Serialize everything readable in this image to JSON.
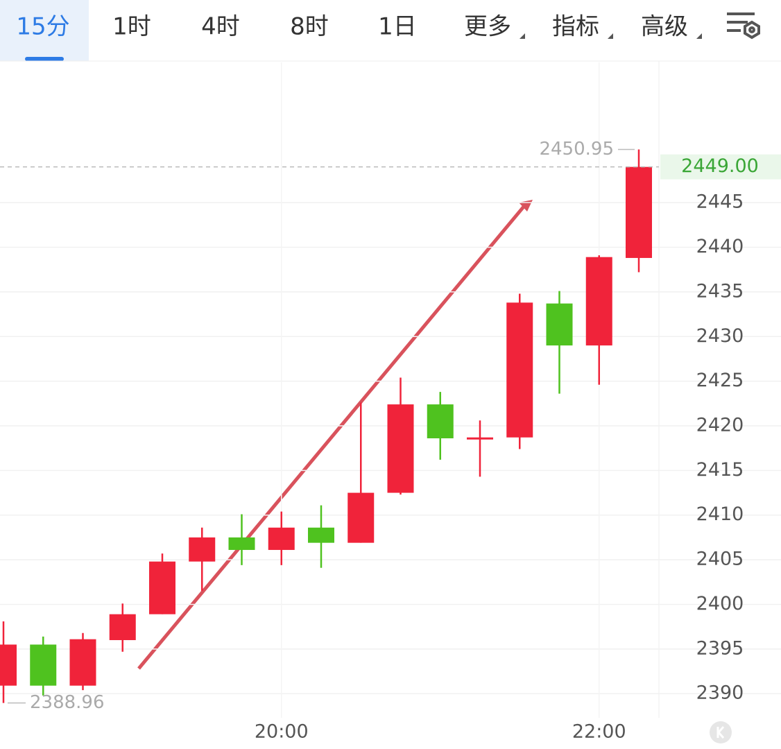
{
  "tabs": [
    "15分",
    "1时",
    "4时",
    "8时",
    "1日",
    "更多",
    "指标",
    "高级"
  ],
  "chart_data": {
    "type": "candlestick",
    "categories": [
      null,
      null,
      null,
      null,
      null,
      null,
      null,
      "20:00",
      null,
      null,
      null,
      null,
      null,
      null,
      null,
      "22:00",
      null
    ],
    "series": [
      {
        "up_color": "#f0233a",
        "down_color": "#4fc21f",
        "open": [
          2390.9,
          2395.5,
          2390.9,
          2396.0,
          2398.9,
          2404.8,
          2407.5,
          2406.1,
          2408.6,
          2406.9,
          2412.5,
          2422.4,
          2418.6,
          2418.7,
          2433.7,
          2429.0,
          2438.8
        ],
        "close": [
          2395.5,
          2390.9,
          2396.1,
          2398.9,
          2404.8,
          2407.5,
          2406.1,
          2408.6,
          2406.9,
          2412.5,
          2422.4,
          2418.6,
          2418.7,
          2433.8,
          2429.0,
          2438.9,
          2449.0
        ],
        "high": [
          2398.1,
          2396.4,
          2396.8,
          2400.1,
          2405.7,
          2408.6,
          2410.1,
          2410.4,
          2411.1,
          2422.6,
          2425.4,
          2423.8,
          2420.6,
          2434.8,
          2435.1,
          2439.1,
          2450.95
        ],
        "low": [
          2388.96,
          2389.8,
          2390.4,
          2394.7,
          2398.9,
          2401.5,
          2404.4,
          2404.4,
          2404.1,
          2406.9,
          2412.3,
          2416.2,
          2414.3,
          2417.4,
          2423.6,
          2424.6,
          2437.2
        ]
      }
    ],
    "ylim": [
      2387.3,
      2460.7
    ],
    "yticks": [
      2390,
      2395,
      2400,
      2405,
      2410,
      2415,
      2420,
      2425,
      2430,
      2435,
      2440,
      2445
    ],
    "grid": true,
    "high_label": "2450.95",
    "low_label": "2388.96",
    "last_price_label": "2449.00"
  }
}
